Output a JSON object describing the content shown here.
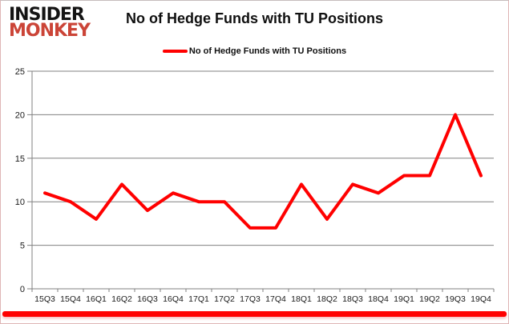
{
  "logo": {
    "line1": "INSIDER",
    "line2": "MONKEY",
    "line1_color": "#141414",
    "line2_color": "#CB4437"
  },
  "header": {
    "title": "No of Hedge Funds with TU Positions"
  },
  "legend": {
    "label": "No of Hedge Funds with TU Positions",
    "marker_color": "#FF0000"
  },
  "frame": {
    "bottom_bar_color": "#FF0000",
    "border_color": "#DFB6B6"
  },
  "chart_data": {
    "type": "line",
    "title": "No of Hedge Funds with TU Positions",
    "categories": [
      "15Q3",
      "15Q4",
      "16Q1",
      "16Q2",
      "16Q3",
      "16Q4",
      "17Q1",
      "17Q2",
      "17Q3",
      "17Q4",
      "18Q1",
      "18Q2",
      "18Q3",
      "18Q4",
      "19Q1",
      "19Q2",
      "19Q3",
      "19Q4"
    ],
    "series": [
      {
        "name": "No of Hedge Funds with TU Positions",
        "color": "#FF0000",
        "values": [
          11,
          10,
          8,
          12,
          9,
          11,
          10,
          10,
          7,
          7,
          12,
          8,
          12,
          11,
          13,
          13,
          20,
          13
        ]
      }
    ],
    "xlabel": "",
    "ylabel": "",
    "ylim": [
      0,
      25
    ],
    "y_ticks": [
      0,
      5,
      10,
      15,
      20,
      25
    ],
    "grid": true,
    "legend_position": "top",
    "grid_color": "#808080",
    "axis_color": "#808080",
    "tick_label_color": "#1a1a1a"
  }
}
